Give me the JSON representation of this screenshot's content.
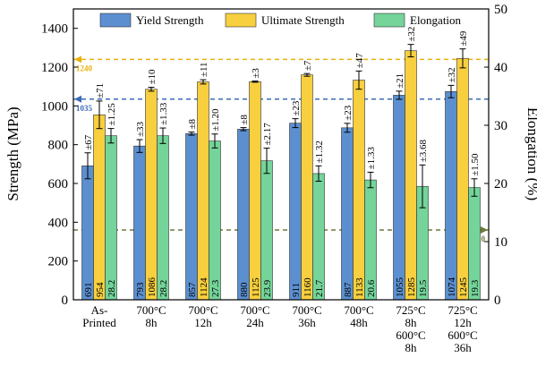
{
  "chart_data": {
    "type": "bar",
    "categories": [
      [
        "As-",
        "Printed"
      ],
      [
        "700°C",
        "8h"
      ],
      [
        "700°C",
        "12h"
      ],
      [
        "700°C",
        "24h"
      ],
      [
        "700°C",
        "36h"
      ],
      [
        "700°C",
        "48h"
      ],
      [
        "725°C",
        "8h",
        "600°C",
        "8h"
      ],
      [
        "725°C",
        "12h",
        "600°C",
        "36h"
      ]
    ],
    "ylabel": "Strength (MPa)",
    "y2label": "Elongation (%)",
    "ylim": [
      0,
      1500
    ],
    "y2lim": [
      0,
      50
    ],
    "yticks": [
      0,
      200,
      400,
      600,
      800,
      1000,
      1200,
      1400
    ],
    "y2ticks": [
      0,
      10,
      20,
      30,
      40,
      50
    ],
    "legend_position": "top",
    "series": [
      {
        "name": "Yield Strength",
        "axis": "left",
        "color": "#5b8fd0",
        "values": [
          691,
          793,
          857,
          880,
          911,
          887,
          1055,
          1074
        ],
        "errors": [
          67,
          33,
          8,
          8,
          23,
          23,
          21,
          32
        ],
        "error_labels": [
          "±67",
          "±33",
          "±8",
          "±8",
          "±23",
          "±23",
          "±21",
          "±32"
        ],
        "value_labels": [
          "691",
          "793",
          "857",
          "880",
          "911",
          "887",
          "1055",
          "1074"
        ]
      },
      {
        "name": "Ultimate Strength",
        "axis": "left",
        "color": "#f7cf3f",
        "values": [
          954,
          1086,
          1124,
          1125,
          1160,
          1133,
          1285,
          1245
        ],
        "errors": [
          71,
          10,
          11,
          3,
          7,
          47,
          32,
          49
        ],
        "error_labels": [
          "±71",
          "±10",
          "±11",
          "±3",
          "±7",
          "±47",
          "±32",
          "±49"
        ],
        "value_labels": [
          "954",
          "1086",
          "1124",
          "1125",
          "1160",
          "1133",
          "1285",
          "1245"
        ]
      },
      {
        "name": "Elongation",
        "axis": "right",
        "color": "#74d49a",
        "values": [
          28.2,
          28.2,
          27.3,
          23.9,
          21.7,
          20.6,
          19.5,
          19.3
        ],
        "errors": [
          1.25,
          1.33,
          1.2,
          2.17,
          1.32,
          1.33,
          3.68,
          1.5
        ],
        "error_labels": [
          "±1.25",
          "±1.33",
          "±1.20",
          "±2.17",
          "±1.32",
          "±1.33",
          "±3.68",
          "±1.50"
        ],
        "value_labels": [
          "28.2",
          "28.2",
          "27.3",
          "23.9",
          "21.7",
          "20.6",
          "19.5",
          "19.3"
        ]
      }
    ],
    "reference_lines": [
      {
        "axis": "left",
        "value": 1240,
        "label": "1240",
        "color": "#e8b10e",
        "direction": "left"
      },
      {
        "axis": "left",
        "value": 1035,
        "label": "1035",
        "color": "#3a6db5",
        "direction": "left"
      },
      {
        "axis": "right",
        "value": 12.0,
        "label": "12.0",
        "color": "#6b7a3a",
        "direction": "right"
      }
    ]
  }
}
